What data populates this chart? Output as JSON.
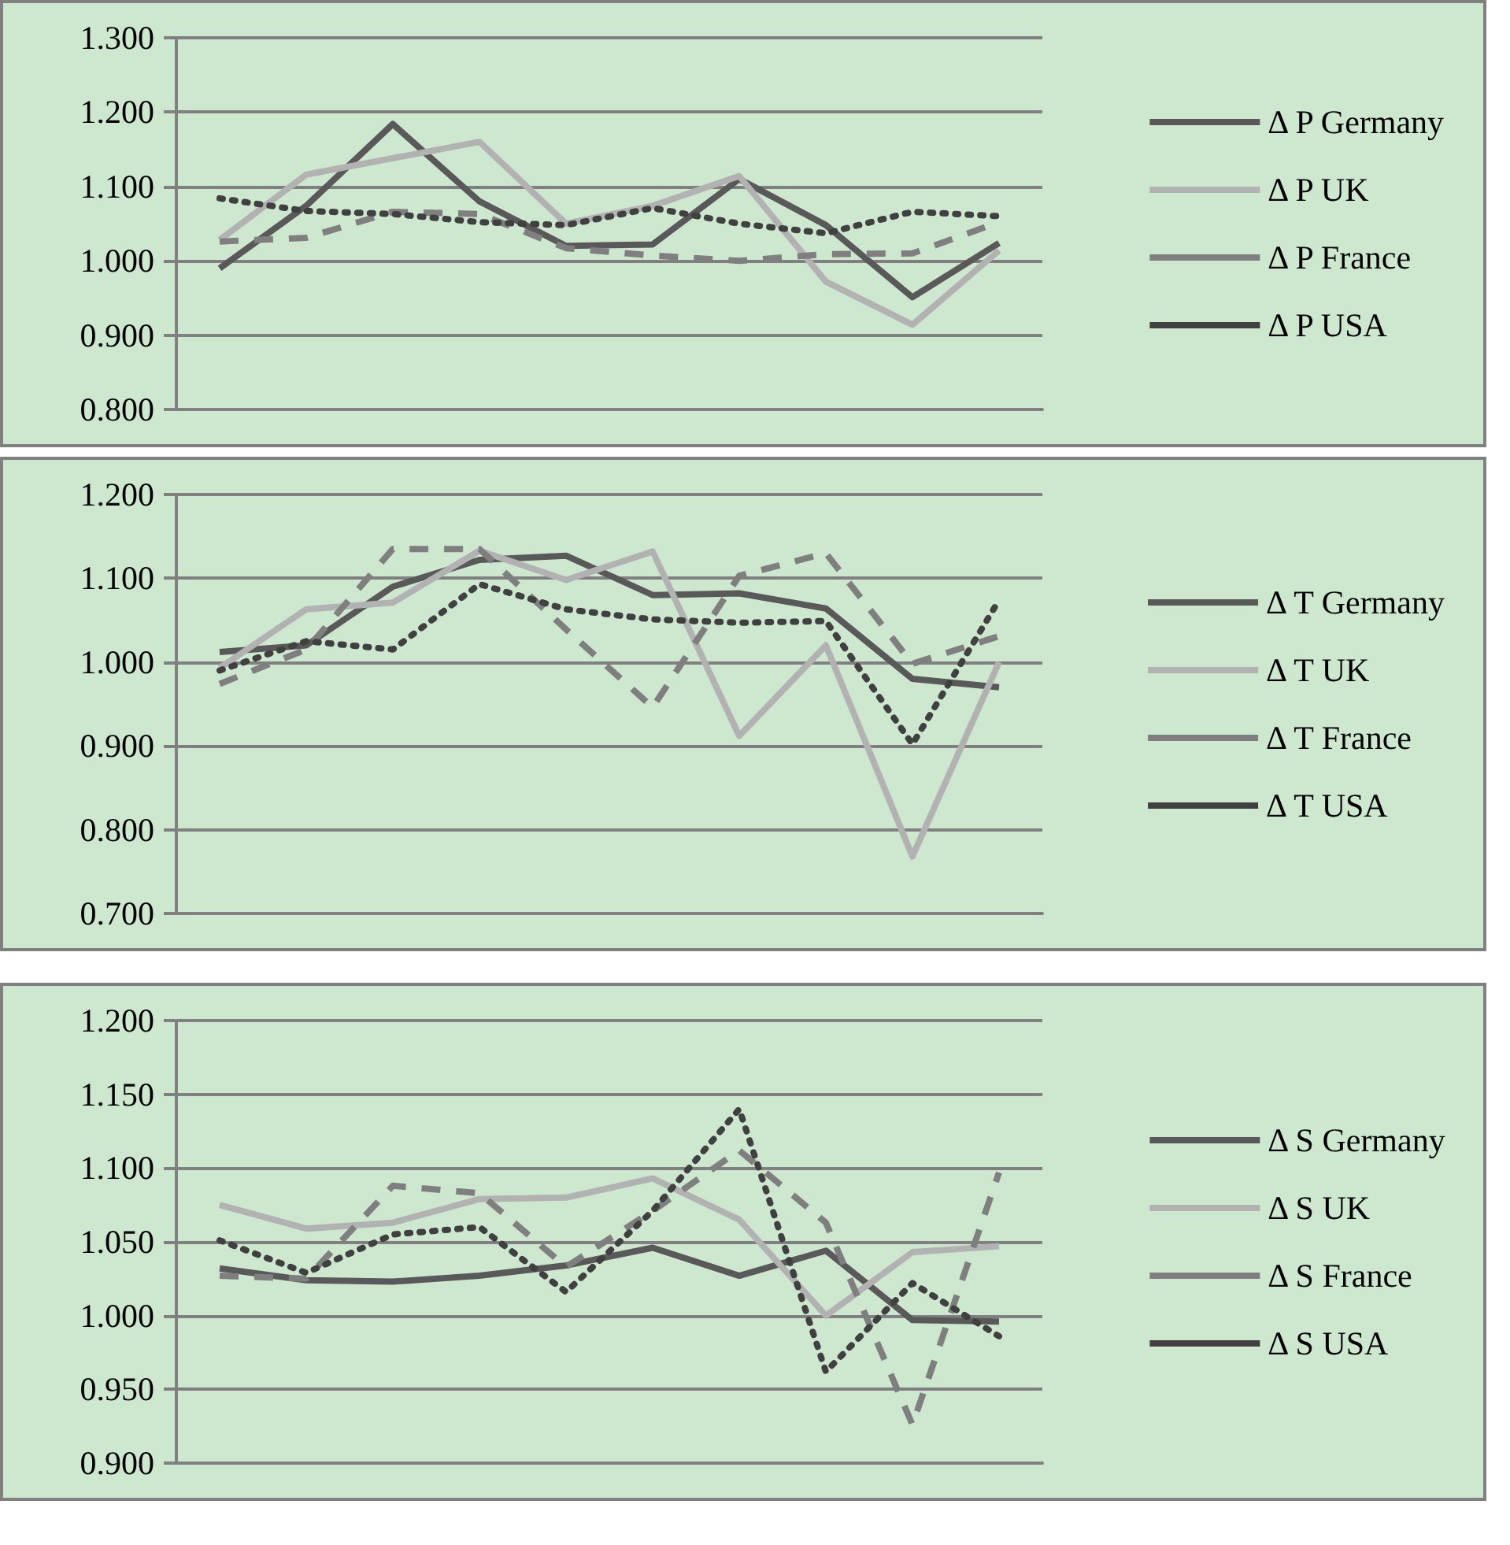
{
  "chart_data": [
    {
      "type": "line",
      "categories": [
        null,
        null,
        null,
        null,
        null,
        null,
        null,
        null,
        null,
        null
      ],
      "ylim": [
        0.8,
        1.3
      ],
      "yticks": [
        {
          "value": 0.8,
          "label": "0.800"
        },
        {
          "value": 0.9,
          "label": "0.900"
        },
        {
          "value": 1.0,
          "label": "1.000"
        },
        {
          "value": 1.1,
          "label": "1.100"
        },
        {
          "value": 1.2,
          "label": "1.200"
        },
        {
          "value": 1.3,
          "label": "1.300"
        }
      ],
      "grid": "y",
      "legend": "right",
      "marker": "none",
      "tick_labels": "y",
      "series": [
        {
          "name": "Δ P Germany",
          "color": "#595959",
          "line_style": "solid",
          "values": [
            0.99,
            1.074,
            1.184,
            1.08,
            1.02,
            1.022,
            1.11,
            1.048,
            0.951,
            1.024
          ]
        },
        {
          "name": "Δ P UK",
          "color": "#b2b2b2",
          "line_style": "solid",
          "values": [
            1.028,
            1.116,
            1.138,
            1.16,
            1.05,
            1.074,
            1.114,
            0.972,
            0.914,
            1.014
          ]
        },
        {
          "name": "Δ P France",
          "color": "#7f7f7f",
          "line_style": "dashed",
          "values": [
            1.026,
            1.031,
            1.066,
            1.063,
            1.017,
            1.007,
            1.0,
            1.009,
            1.01,
            1.052
          ]
        },
        {
          "name": "Δ P USA",
          "color": "#404040",
          "line_style": "dotted",
          "values": [
            1.084,
            1.067,
            1.063,
            1.052,
            1.048,
            1.071,
            1.05,
            1.037,
            1.066,
            1.06
          ]
        }
      ]
    },
    {
      "type": "line",
      "categories": [
        null,
        null,
        null,
        null,
        null,
        null,
        null,
        null,
        null,
        null
      ],
      "ylim": [
        0.7,
        1.2
      ],
      "yticks": [
        {
          "value": 0.7,
          "label": "0.700"
        },
        {
          "value": 0.8,
          "label": "0.800"
        },
        {
          "value": 0.9,
          "label": "0.900"
        },
        {
          "value": 1.0,
          "label": "1.000"
        },
        {
          "value": 1.1,
          "label": "1.100"
        },
        {
          "value": 1.2,
          "label": "1.200"
        }
      ],
      "grid": "y",
      "legend": "right",
      "marker": "none",
      "tick_labels": "y",
      "series": [
        {
          "name": "Δ T Germany",
          "color": "#595959",
          "line_style": "solid",
          "values": [
            1.012,
            1.02,
            1.09,
            1.122,
            1.127,
            1.08,
            1.082,
            1.064,
            0.98,
            0.97
          ]
        },
        {
          "name": "Δ T UK",
          "color": "#b2b2b2",
          "line_style": "solid",
          "values": [
            0.993,
            1.063,
            1.071,
            1.133,
            1.098,
            1.132,
            0.912,
            1.02,
            0.768,
            1.0
          ]
        },
        {
          "name": "Δ T France",
          "color": "#7f7f7f",
          "line_style": "dashed",
          "values": [
            0.974,
            1.015,
            1.135,
            1.135,
            1.039,
            0.946,
            1.103,
            1.13,
            0.998,
            1.031
          ]
        },
        {
          "name": "Δ T USA",
          "color": "#404040",
          "line_style": "dotted",
          "values": [
            0.99,
            1.025,
            1.015,
            1.093,
            1.063,
            1.051,
            1.047,
            1.049,
            0.902,
            1.074
          ]
        }
      ]
    },
    {
      "type": "line",
      "categories": [
        null,
        null,
        null,
        null,
        null,
        null,
        null,
        null,
        null,
        null
      ],
      "ylim": [
        0.9,
        1.2
      ],
      "yticks": [
        {
          "value": 0.9,
          "label": "0.900"
        },
        {
          "value": 0.95,
          "label": "0.950"
        },
        {
          "value": 1.0,
          "label": "1.000"
        },
        {
          "value": 1.05,
          "label": "1.050"
        },
        {
          "value": 1.1,
          "label": "1.100"
        },
        {
          "value": 1.15,
          "label": "1.150"
        },
        {
          "value": 1.2,
          "label": "1.200"
        }
      ],
      "grid": "y",
      "legend": "right",
      "marker": "none",
      "tick_labels": "y",
      "series": [
        {
          "name": "Δ S Germany",
          "color": "#595959",
          "line_style": "solid",
          "values": [
            1.032,
            1.024,
            1.023,
            1.027,
            1.034,
            1.046,
            1.027,
            1.044,
            0.997,
            0.996
          ]
        },
        {
          "name": "Δ S UK",
          "color": "#b2b2b2",
          "line_style": "solid",
          "values": [
            1.075,
            1.059,
            1.063,
            1.079,
            1.08,
            1.093,
            1.065,
            1.0,
            1.043,
            1.047
          ]
        },
        {
          "name": "Δ S France",
          "color": "#7f7f7f",
          "line_style": "dashed",
          "values": [
            1.027,
            1.025,
            1.088,
            1.083,
            1.033,
            1.071,
            1.112,
            1.063,
            0.926,
            1.097
          ]
        },
        {
          "name": "Δ S USA",
          "color": "#404040",
          "line_style": "dotted",
          "values": [
            1.051,
            1.029,
            1.055,
            1.06,
            1.016,
            1.071,
            1.14,
            0.962,
            1.022,
            0.986
          ]
        }
      ]
    }
  ]
}
